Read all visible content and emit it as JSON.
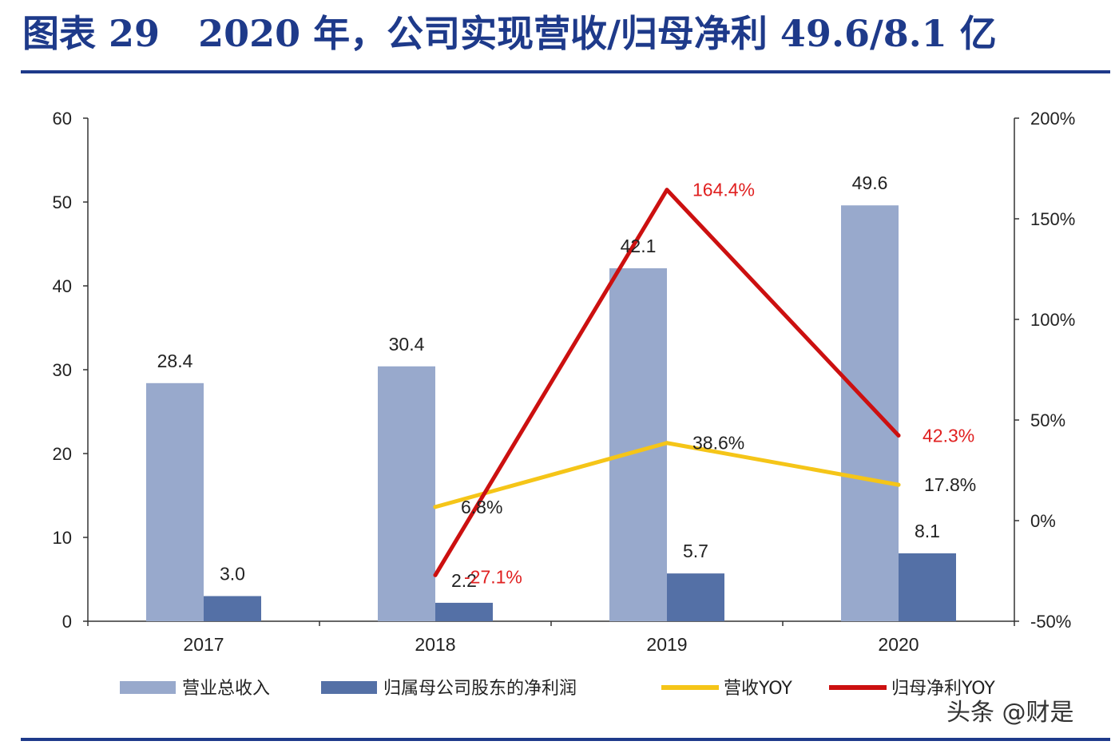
{
  "page": {
    "title": "图表 29   2020 年，公司实现营收/归母净利 49.6/8.1 亿"
  },
  "colors": {
    "title": "#1e3a8a",
    "rule": "#1e3a8a",
    "revenue_bar": "#98a9cc",
    "profit_bar": "#5470a6",
    "revenue_yoy": "#f5c518",
    "profit_yoy": "#cc1010",
    "profit_yoy_label": "#e02020"
  },
  "watermark": "头条 @财是",
  "chart_data": {
    "type": "bar",
    "categories": [
      "2017",
      "2018",
      "2019",
      "2020"
    ],
    "y_left": {
      "ticks": [
        "0",
        "10",
        "20",
        "30",
        "40",
        "50",
        "60"
      ],
      "ylim": [
        0,
        60
      ]
    },
    "y_right": {
      "ticks": [
        "-50%",
        "0%",
        "50%",
        "100%",
        "150%",
        "200%"
      ],
      "ylim": [
        -50,
        200
      ]
    },
    "series": [
      {
        "name": "营业总收入",
        "kind": "bar",
        "axis": "left",
        "values": [
          28.4,
          30.4,
          42.1,
          49.6
        ],
        "labels": [
          "28.4",
          "30.4",
          "42.1",
          "49.6"
        ]
      },
      {
        "name": "归属母公司股东的净利润",
        "kind": "bar",
        "axis": "left",
        "values": [
          3.0,
          2.2,
          5.7,
          8.1
        ],
        "labels": [
          "3.0",
          "2.2",
          "5.7",
          "8.1"
        ]
      },
      {
        "name": "营收YOY",
        "kind": "line",
        "axis": "right",
        "values": [
          null,
          6.8,
          38.6,
          17.8
        ],
        "labels": [
          null,
          "6.8%",
          "38.6%",
          "17.8%"
        ]
      },
      {
        "name": "归母净利YOY",
        "kind": "line",
        "axis": "right",
        "values": [
          null,
          -27.1,
          164.4,
          42.3
        ],
        "labels": [
          null,
          "-27.1%",
          "164.4%",
          "42.3%"
        ]
      }
    ],
    "legend_position": "bottom",
    "grid": false
  }
}
